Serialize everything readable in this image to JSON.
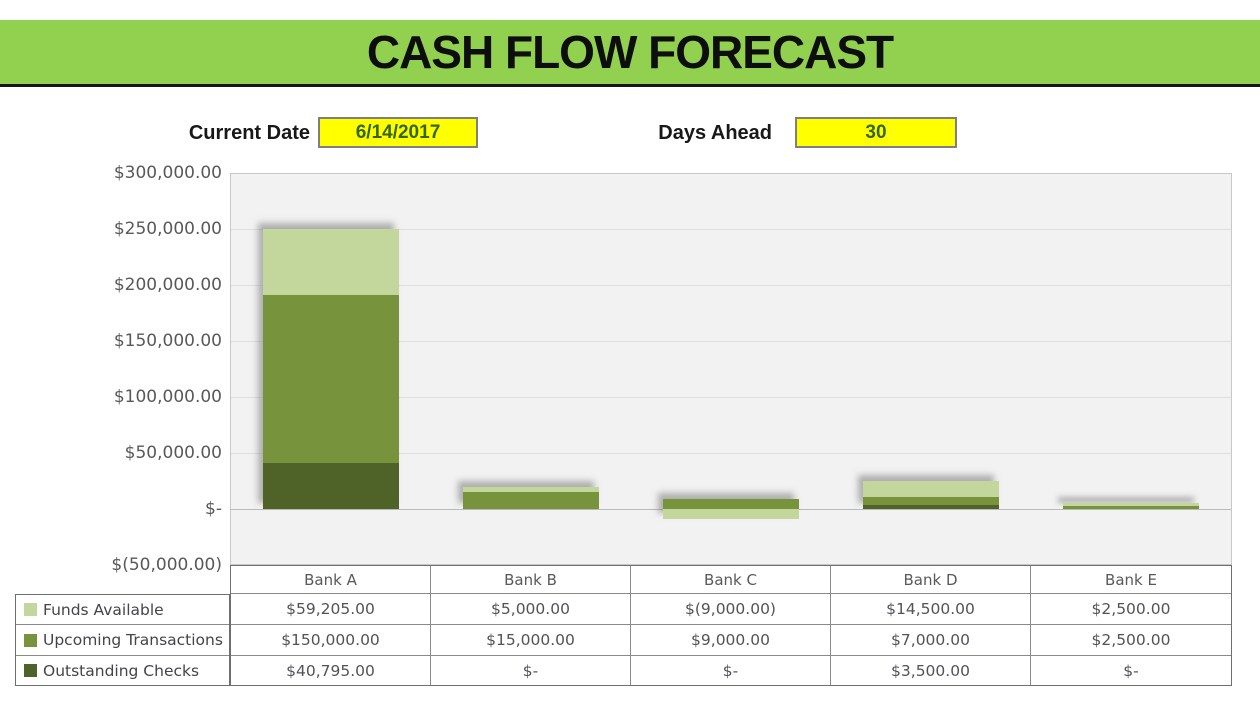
{
  "title": "CASH FLOW FORECAST",
  "controls": {
    "current_date_label": "Current Date",
    "current_date_value": "6/14/2017",
    "days_ahead_label": "Days Ahead",
    "days_ahead_value": "30"
  },
  "chart_data": {
    "type": "bar",
    "stacked": true,
    "title": "",
    "xlabel": "",
    "ylabel": "",
    "grid": true,
    "legend_position": "table-left",
    "categories": [
      "Bank A",
      "Bank B",
      "Bank C",
      "Bank D",
      "Bank E"
    ],
    "series": [
      {
        "name": "Funds Available",
        "color": "#c3d69b",
        "values": [
          59205,
          5000,
          -9000,
          14500,
          2500
        ],
        "labels": [
          "$59,205.00",
          "$5,000.00",
          "$(9,000.00)",
          "$14,500.00",
          "$2,500.00"
        ]
      },
      {
        "name": "Upcoming Transactions",
        "color": "#77933c",
        "values": [
          150000,
          15000,
          9000,
          7000,
          2500
        ],
        "labels": [
          "$150,000.00",
          "$15,000.00",
          "$9,000.00",
          "$7,000.00",
          "$2,500.00"
        ]
      },
      {
        "name": "Outstanding Checks",
        "color": "#4f6228",
        "values": [
          40795,
          0,
          0,
          3500,
          0
        ],
        "labels": [
          "$40,795.00",
          "$-",
          "$-",
          "$3,500.00",
          "$-"
        ]
      }
    ],
    "stack_order_bottom_to_top": [
      "Outstanding Checks",
      "Upcoming Transactions",
      "Funds Available"
    ],
    "y_axis": {
      "min": -50000,
      "max": 300000,
      "step": 50000,
      "tick_labels": [
        "$300,000.00",
        "$250,000.00",
        "$200,000.00",
        "$150,000.00",
        "$100,000.00",
        "$50,000.00",
        "$-",
        "$(50,000.00)"
      ],
      "tick_values": [
        300000,
        250000,
        200000,
        150000,
        100000,
        50000,
        0,
        -50000
      ]
    }
  },
  "colors": {
    "banner_green": "#92d050",
    "input_yellow": "#ffff00",
    "input_text_green": "#336600",
    "plot_background": "#f2f2f2",
    "axis_text": "#595959",
    "table_text": "#52525a"
  }
}
